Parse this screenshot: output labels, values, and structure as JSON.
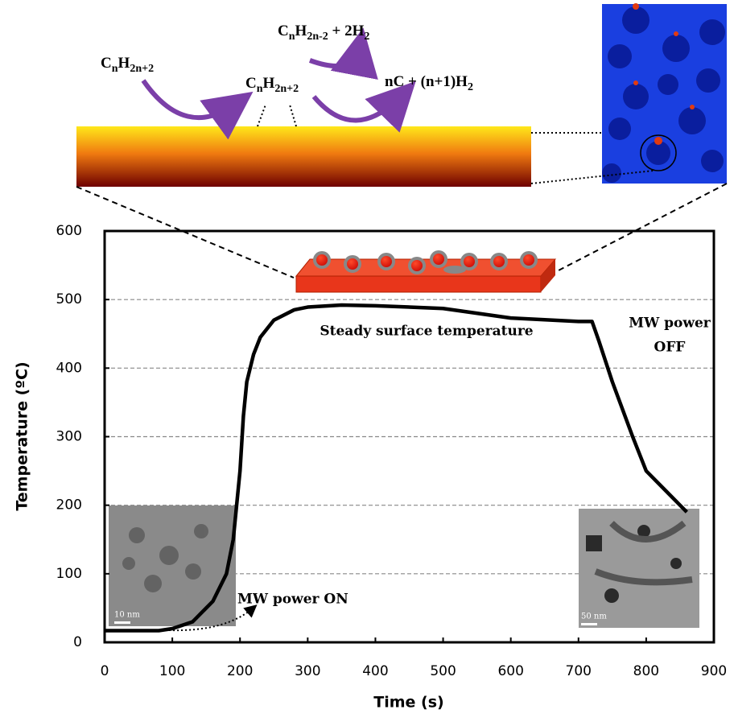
{
  "chart_data": {
    "type": "line",
    "x_label": "Time (s)",
    "y_label": "Temperature (ºC)",
    "xlim": [
      0,
      900
    ],
    "xticks": [
      0,
      100,
      200,
      300,
      400,
      500,
      600,
      700,
      800,
      900
    ],
    "ylim": [
      0,
      600
    ],
    "yticks": [
      0,
      100,
      200,
      300,
      400,
      500,
      600
    ],
    "grid_values": [
      100,
      200,
      300,
      400,
      500
    ],
    "grid": true,
    "series": [
      {
        "color": "#000000",
        "x": [
          0,
          10,
          80,
          100,
          130,
          160,
          180,
          190,
          200,
          205,
          210,
          220,
          230,
          250,
          280,
          300,
          350,
          400,
          500,
          600,
          700,
          720,
          730,
          750,
          780,
          800,
          830,
          860
        ],
        "values": [
          17,
          17,
          17,
          20,
          30,
          60,
          100,
          150,
          250,
          330,
          380,
          420,
          445,
          470,
          485,
          489,
          492,
          491,
          487,
          473,
          468,
          468,
          440,
          380,
          300,
          250,
          220,
          190
        ]
      }
    ],
    "annotations": [
      "Steady surface temperature",
      "MW power",
      "OFF",
      "MW power ON",
      "10 nm",
      "50 nm"
    ],
    "formulas": [
      [
        "C",
        "n",
        "H",
        "2n+2"
      ],
      [
        "C",
        "n",
        "H",
        "2n-2",
        " + 2H",
        "2"
      ],
      [
        "C",
        "n",
        "H",
        "2n+2"
      ],
      [
        "nC + (n+1)H",
        "2"
      ]
    ]
  }
}
